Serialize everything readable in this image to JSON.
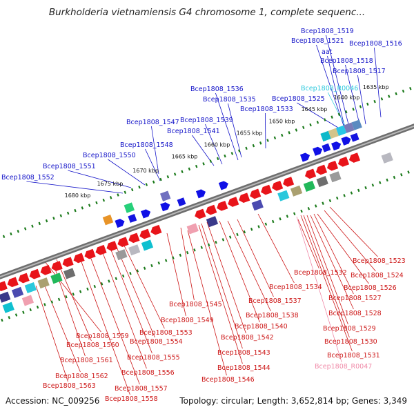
{
  "title": "Burkholderia vietnamiensis G4 chromosome 1, complete sequenc...",
  "footer": {
    "accession": "Accession: NC_009256",
    "info": "Topology: circular; Length: 3,652,814 bp; Genes: 3,349"
  },
  "colors": {
    "backbone": "#8f8f8f",
    "tick": "#1b7a1b",
    "forward_label": "#1212c8",
    "reverse_label": "#cc1414",
    "rna_label": "#2ac8dc",
    "pseudo_label": "#f08aa8"
  },
  "kbp_labels": [
    "1635 kbp",
    "1640 kbp",
    "1645 kbp",
    "1650 kbp",
    "1655 kbp",
    "1660 kbp",
    "1665 kbp",
    "1670 kbp",
    "1675 kbp",
    "1680 kbp"
  ],
  "forward_genes": [
    "Bcep1808_1519",
    "Bcep1808_1521",
    "aat",
    "Bcep1808_1516",
    "Bcep1808_1518",
    "Bcep1808_1517",
    "Bcep1808_R0046",
    "Bcep1808_1536",
    "Bcep1808_1525",
    "Bcep1808_1535",
    "Bcep1808_1533",
    "Bcep1808_1547",
    "Bcep1808_1539",
    "Bcep1808_1541",
    "Bcep1808_1548",
    "Bcep1808_1550",
    "Bcep1808_1551",
    "Bcep1808_1552"
  ],
  "reverse_genes": [
    "Bcep1808_1523",
    "Bcep1808_1532",
    "Bcep1808_1524",
    "Bcep1808_1534",
    "Bcep1808_1526",
    "Bcep1808_1537",
    "Bcep1808_1527",
    "Bcep1808_1545",
    "Bcep1808_1528",
    "Bcep1808_1538",
    "Bcep1808_1549",
    "Bcep1808_1540",
    "Bcep1808_1529",
    "Bcep1808_1553",
    "Bcep1808_1559",
    "Bcep1808_1542",
    "Bcep1808_1530",
    "Bcep1808_1554",
    "Bcep1808_1560",
    "Bcep1808_1543",
    "Bcep1808_1531",
    "Bcep1808_1555",
    "Bcep1808_1561",
    "Bcep1808_R0047",
    "Bcep1808_1544",
    "Bcep1808_1556",
    "Bcep1808_1562",
    "Bcep1808_1546",
    "Bcep1808_1557",
    "Bcep1808_1563",
    "Bcep1808_1558"
  ]
}
